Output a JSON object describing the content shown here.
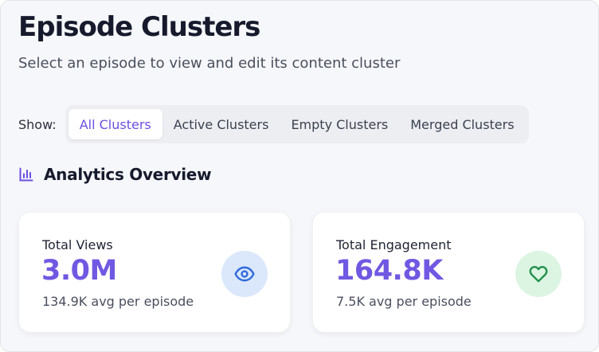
{
  "header": {
    "title": "Episode Clusters",
    "subtitle": "Select an episode to view and edit its content cluster"
  },
  "filter": {
    "label": "Show:",
    "options": [
      "All Clusters",
      "Active Clusters",
      "Empty Clusters",
      "Merged Clusters"
    ],
    "selected": "All Clusters"
  },
  "analytics": {
    "title": "Analytics Overview",
    "icon": "bar-chart-icon",
    "cards": [
      {
        "label": "Total Views",
        "value": "3.0M",
        "sub": "134.9K avg per episode",
        "icon": "eye-icon",
        "icon_color": "#2f6bdc",
        "icon_bg": "#dbe7fb"
      },
      {
        "label": "Total Engagement",
        "value": "164.8K",
        "sub": "7.5K avg per episode",
        "icon": "heart-icon",
        "icon_color": "#22914c",
        "icon_bg": "#dcf5e3"
      }
    ]
  },
  "colors": {
    "accent": "#7158e2",
    "background": "#f6f7fa",
    "segment_bg": "#edeef2"
  }
}
